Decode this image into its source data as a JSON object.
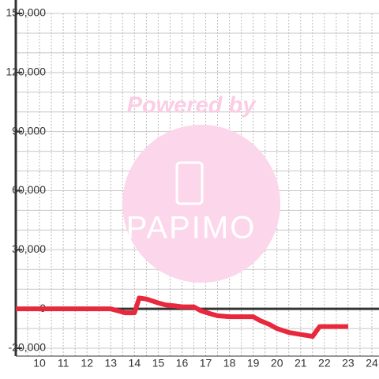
{
  "chart_data": {
    "type": "line",
    "watermark": {
      "caption": "Powered by",
      "logo": "PAPIMO"
    },
    "x": [
      9,
      13,
      13.3,
      13.6,
      14,
      14.2,
      14.5,
      15,
      15.3,
      15.7,
      16,
      16.5,
      16.8,
      17.2,
      17.5,
      18,
      19,
      19.3,
      19.7,
      20,
      20.5,
      21,
      21.5,
      21.8,
      22,
      23
    ],
    "series": [
      {
        "color": "#e8283c",
        "values": [
          0,
          0,
          -1000,
          -2000,
          -2000,
          5500,
          5000,
          3000,
          2000,
          1500,
          1000,
          1000,
          -1000,
          -2500,
          -3500,
          -4000,
          -4000,
          -6000,
          -8000,
          -10000,
          -12000,
          -13000,
          -14000,
          -9000,
          -9000,
          -9000
        ]
      }
    ],
    "xlim": [
      9,
      24.3
    ],
    "xticks": [
      10,
      11,
      12,
      13,
      14,
      15,
      16,
      17,
      18,
      19,
      20,
      21,
      22,
      23,
      24
    ],
    "x_grid_lines": [
      9.5,
      10,
      10.5,
      11,
      11.5,
      12,
      12.5,
      13,
      13.5,
      14,
      14.5,
      15,
      15.5,
      16,
      16.5,
      17,
      17.5,
      18,
      18.5,
      19,
      19.5,
      20,
      20.5,
      21,
      21.5,
      22,
      22.5,
      23,
      23.5,
      24
    ],
    "ylim": [
      -24000,
      150000
    ],
    "yticks": [
      {
        "value": -20000,
        "label": "-20,000"
      },
      0,
      {
        "value": 30000,
        "label": "30,000"
      },
      {
        "value": 60000,
        "label": "60,000"
      },
      {
        "value": 90000,
        "label": "90,000"
      },
      {
        "value": 120000,
        "label": "120,000"
      },
      {
        "value": 150000,
        "label": "150,000"
      }
    ],
    "y_grid_lines": [
      -20000,
      -10000,
      10000,
      20000,
      30000,
      40000,
      50000,
      60000,
      70000,
      80000,
      90000,
      100000,
      110000,
      120000,
      130000,
      140000,
      150000
    ],
    "grid": true
  }
}
